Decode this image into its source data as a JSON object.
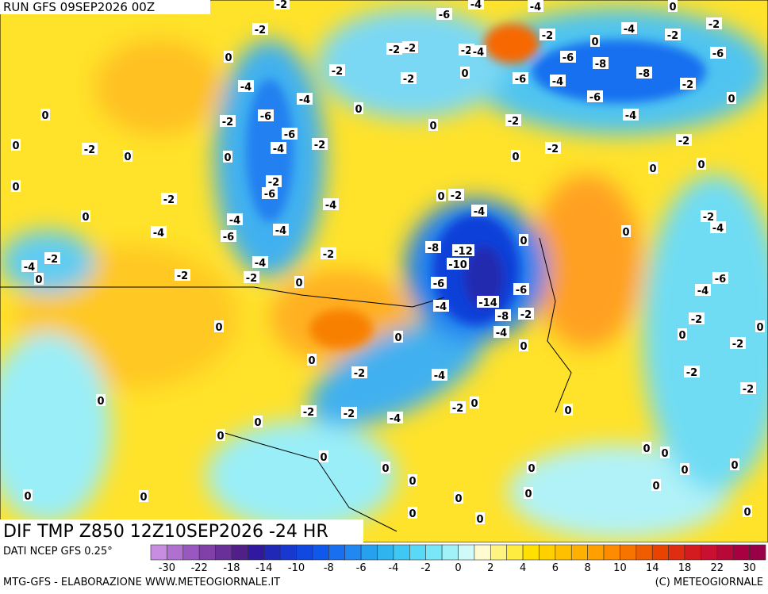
{
  "header": {
    "run": "RUN GFS 09SEP2026 00Z"
  },
  "map": {
    "title": "DIF TMP Z850 12Z10SEP2026 -24 HR",
    "contour_labels": [
      -2,
      -6,
      -4,
      -4,
      0,
      -2,
      -2,
      -2,
      -2,
      -4,
      -2,
      0,
      -4,
      -2,
      -2,
      -6,
      -6,
      -8,
      -8,
      -2,
      0,
      -6,
      -4,
      -6,
      -4,
      0,
      -2,
      -2,
      0,
      -4,
      -4,
      0,
      -6,
      -2,
      -6,
      -4,
      -2,
      0,
      -2,
      -2,
      0,
      -2,
      0,
      0,
      0,
      0,
      -2,
      0,
      0,
      0,
      -2,
      -6,
      -2,
      0,
      -4,
      0,
      -2,
      -4,
      -4,
      -4,
      -6,
      -4,
      -8,
      -12,
      -10,
      0,
      0,
      -2,
      -4,
      -2,
      -4,
      -2,
      -4,
      0,
      -2,
      -2,
      0,
      -6,
      -6,
      -14,
      -8,
      -2,
      -4,
      -4,
      -6,
      -4,
      -2,
      0,
      0,
      0,
      0,
      0,
      -2,
      0,
      -2,
      -4,
      -2,
      -2,
      0,
      -2,
      -2,
      -4,
      -2,
      0,
      0,
      0,
      0,
      0,
      0,
      0,
      0,
      0,
      0,
      0,
      0,
      0,
      0,
      0,
      0,
      0,
      0,
      0,
      0
    ]
  },
  "colorbar": {
    "source": "DATI NCEP GFS 0.25°",
    "colors": [
      "#c88ce0",
      "#b070d0",
      "#9858c0",
      "#8040a8",
      "#683098",
      "#502088",
      "#3018a0",
      "#2028b8",
      "#1838d0",
      "#1048e0",
      "#1058ec",
      "#1870f0",
      "#2088f0",
      "#28a0f0",
      "#30b4f0",
      "#40c8f4",
      "#58daf6",
      "#78e8f8",
      "#a0f2f8",
      "#d0fafa",
      "#fffad0",
      "#fff480",
      "#ffec40",
      "#ffe000",
      "#ffd000",
      "#ffc000",
      "#ffb000",
      "#ffa000",
      "#ff8c00",
      "#f87400",
      "#f05c00",
      "#e84400",
      "#e02c10",
      "#d41c20",
      "#c81030",
      "#b80838",
      "#a80040",
      "#980048"
    ],
    "ticks": [
      -30,
      -22,
      -18,
      -14,
      -10,
      -8,
      -6,
      -4,
      -2,
      0,
      2,
      4,
      6,
      8,
      10,
      14,
      18,
      22,
      30
    ]
  },
  "footer": {
    "left": "MTG-GFS - ELABORAZIONE WWW.METEOGIORNALE.IT",
    "right": "(C) METEOGIORNALE"
  }
}
